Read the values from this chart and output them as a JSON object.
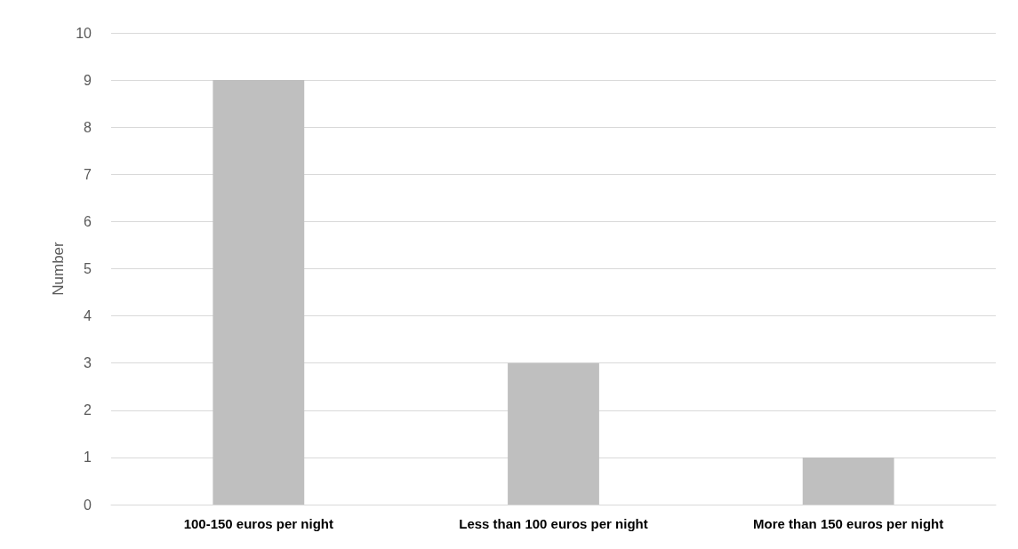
{
  "chart_data": {
    "type": "bar",
    "ylabel": "Number",
    "categories": [
      "100-150 euros per night",
      "Less than 100 euros per night",
      "More than 150 euros per night"
    ],
    "values": [
      9,
      3,
      1
    ],
    "color": "#bfbfbf",
    "ylim": [
      0,
      10
    ],
    "yticks": [
      0,
      1,
      2,
      3,
      4,
      5,
      6,
      7,
      8,
      9,
      10
    ],
    "grid": "y"
  }
}
